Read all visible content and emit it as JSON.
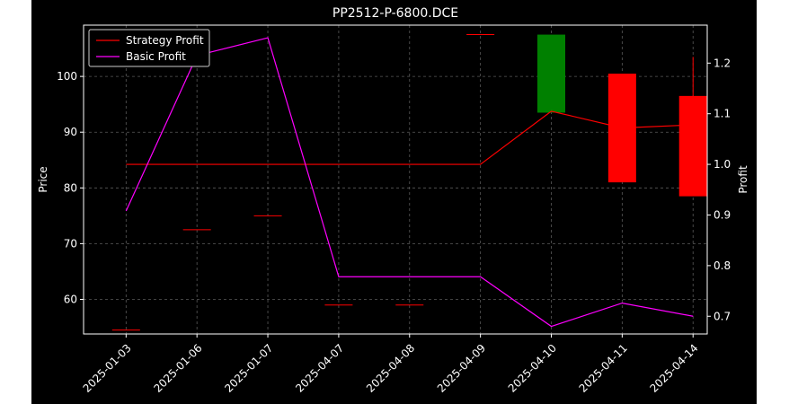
{
  "chart_data": {
    "type": "candlestick",
    "title": "PP2512-P-6800.DCE",
    "xlabel": "",
    "ylabel": "Price",
    "ylabel_right": "Profit",
    "categories": [
      "2025-01-03",
      "2025-01-06",
      "2025-01-07",
      "2025-04-07",
      "2025-04-08",
      "2025-04-09",
      "2025-04-10",
      "2025-04-11",
      "2025-04-14"
    ],
    "ylim": [
      53.8,
      109.2
    ],
    "yticks": [
      60,
      70,
      80,
      90,
      100
    ],
    "ylim_right": [
      0.665,
      1.275
    ],
    "yticks_right": [
      0.7,
      0.8,
      0.9,
      1.0,
      1.1,
      1.2
    ],
    "candles": [
      {
        "open": 54.5,
        "close": 54.5,
        "high": 54.5,
        "low": 54.5
      },
      {
        "open": 72.5,
        "close": 72.5,
        "high": 72.5,
        "low": 72.5
      },
      {
        "open": 75.0,
        "close": 75.0,
        "high": 75.0,
        "low": 75.0
      },
      {
        "open": 59.0,
        "close": 59.0,
        "high": 59.0,
        "low": 59.0
      },
      {
        "open": 59.0,
        "close": 59.0,
        "high": 59.0,
        "low": 59.0
      },
      {
        "open": 107.5,
        "close": 107.5,
        "high": 107.5,
        "low": 107.5
      },
      {
        "open": 93.5,
        "close": 107.5,
        "high": 107.5,
        "low": 93.5
      },
      {
        "open": 100.5,
        "close": 81.0,
        "high": 100.5,
        "low": 81.0
      },
      {
        "open": 96.5,
        "close": 78.5,
        "high": 103.5,
        "low": 78.5
      }
    ],
    "series": [
      {
        "name": "Strategy Profit",
        "axis": "right",
        "color": "#ff0000",
        "values": [
          1.0,
          1.0,
          1.0,
          1.0,
          1.0,
          1.0,
          1.105,
          1.072,
          1.078
        ]
      },
      {
        "name": "Basic Profit",
        "axis": "right",
        "color": "#ff00ff",
        "values": [
          0.908,
          1.215,
          1.25,
          0.778,
          0.778,
          0.778,
          0.68,
          0.726,
          0.7
        ]
      }
    ],
    "colors": {
      "up": "#008000",
      "down": "#ff0000",
      "flat": "#ff0000"
    },
    "grid": true,
    "legend_position": "top-left"
  }
}
